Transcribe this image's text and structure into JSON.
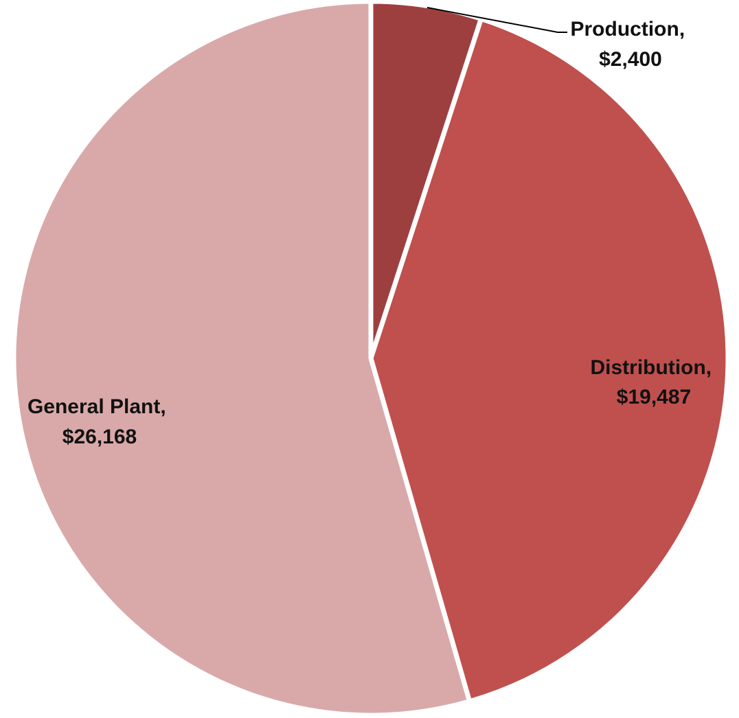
{
  "chart_data": {
    "type": "pie",
    "title": "",
    "slices": [
      {
        "name": "Production",
        "value": 2400,
        "label_name": "Production,",
        "label_value": "$2,400",
        "color": "#9e3f3f"
      },
      {
        "name": "Distribution",
        "value": 19487,
        "label_name": "Distribution,",
        "label_value": "$19,487",
        "color": "#c0504d"
      },
      {
        "name": "General Plant",
        "value": 26168,
        "label_name": "General Plant,",
        "label_value": "$26,168",
        "color": "#d9a9a9"
      }
    ],
    "start_angle": "12 o'clock",
    "direction": "clockwise",
    "legend": "none",
    "data_labels": "category name and value"
  }
}
